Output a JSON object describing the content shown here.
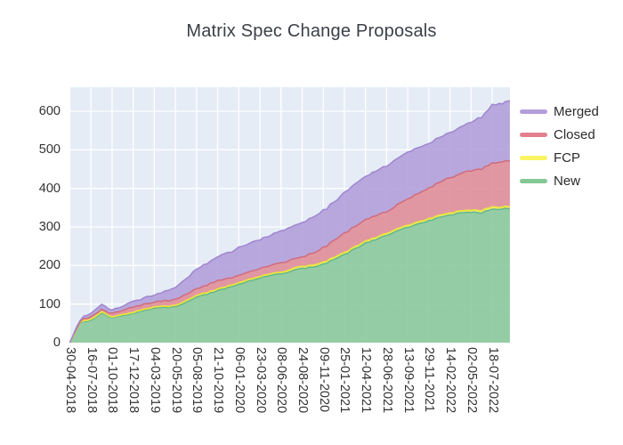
{
  "title": "Matrix Spec Change Proposals",
  "legend": {
    "items": [
      {
        "label": "Merged",
        "color": "#b49ddb"
      },
      {
        "label": "Closed",
        "color": "#e2808e"
      },
      {
        "label": "FCP",
        "color": "#faf463"
      },
      {
        "label": "New",
        "color": "#85c794"
      }
    ]
  },
  "y_axis": {
    "ticks": [
      "0",
      "100",
      "200",
      "300",
      "400",
      "500",
      "600"
    ]
  },
  "x_axis": {
    "ticks": [
      "30-04-2018",
      "16-07-2018",
      "01-10-2018",
      "17-12-2018",
      "04-03-2019",
      "20-05-2019",
      "05-08-2019",
      "21-10-2019",
      "06-01-2020",
      "23-03-2020",
      "08-06-2020",
      "24-08-2020",
      "09-11-2020",
      "25-01-2021",
      "12-04-2021",
      "28-06-2021",
      "13-09-2021",
      "29-11-2021",
      "14-02-2022",
      "02-05-2022",
      "18-07-2022"
    ]
  },
  "chart_data": {
    "type": "area",
    "stacked": true,
    "title": "Matrix Spec Change Proposals",
    "xlabel": "",
    "ylabel": "",
    "ylim": [
      0,
      660
    ],
    "grid": true,
    "legend_position": "right-outside",
    "plot_background": "#e5ecf6",
    "grid_color": "#ffffff",
    "categories": [
      "30-04-2018",
      "16-07-2018",
      "01-10-2018",
      "17-12-2018",
      "04-03-2019",
      "20-05-2019",
      "05-08-2019",
      "21-10-2019",
      "06-01-2020",
      "23-03-2020",
      "08-06-2020",
      "24-08-2020",
      "09-11-2020",
      "25-01-2021",
      "12-04-2021",
      "28-06-2021",
      "13-09-2021",
      "29-11-2021",
      "14-02-2022",
      "02-05-2022",
      "18-07-2022"
    ],
    "stack_order": [
      "New",
      "FCP",
      "Closed",
      "Merged"
    ],
    "series": [
      {
        "name": "New",
        "fill": "#8bc99c",
        "line": "#5fb585",
        "values": [
          0,
          57,
          64,
          76,
          89,
          93,
          118,
          134,
          152,
          168,
          179,
          192,
          203,
          228,
          258,
          278,
          300,
          316,
          331,
          339,
          346
        ]
      },
      {
        "name": "FCP",
        "fill": "#f5f07b",
        "line": "#e9e33f",
        "values": [
          0,
          3,
          2,
          3,
          3,
          3,
          4,
          4,
          4,
          4,
          4,
          5,
          5,
          5,
          5,
          5,
          5,
          5,
          5,
          5,
          6
        ]
      },
      {
        "name": "Closed",
        "fill": "#df8e99",
        "line": "#d06c7c",
        "values": [
          0,
          6,
          9,
          14,
          12,
          16,
          18,
          21,
          19,
          21,
          24,
          25,
          38,
          50,
          56,
          56,
          68,
          80,
          92,
          103,
          114
        ]
      },
      {
        "name": "Merged",
        "fill": "#b3a0da",
        "line": "#9f86cf",
        "values": [
          0,
          9,
          10,
          15,
          18,
          31,
          50,
          62,
          72,
          75,
          82,
          90,
          96,
          105,
          112,
          120,
          122,
          115,
          118,
          125,
          150
        ]
      }
    ],
    "samples": {
      "note": "half-tick-resolution readings used to draw the wiggly weekly curve; positions are in tick units",
      "positions": [
        0,
        0.5,
        1,
        1.5,
        2,
        2.5,
        3,
        3.5,
        4,
        4.5,
        5,
        5.5,
        6,
        6.5,
        7,
        7.5,
        8,
        8.5,
        9,
        9.5,
        10,
        10.5,
        11,
        11.5,
        12,
        12.5,
        13,
        13.5,
        14,
        14.5,
        15,
        15.5,
        16,
        16.5,
        17,
        17.5,
        18,
        18.5,
        19,
        19.5,
        20,
        20.5,
        20.84
      ],
      "new": [
        0,
        52,
        57,
        76,
        64,
        70,
        76,
        83,
        89,
        91,
        93,
        105,
        118,
        126,
        134,
        143,
        152,
        160,
        168,
        174,
        179,
        186,
        192,
        197,
        203,
        215,
        228,
        243,
        258,
        268,
        278,
        289,
        300,
        308,
        316,
        324,
        331,
        336,
        339,
        337,
        346,
        347,
        348
      ],
      "fcp": [
        0,
        2,
        3,
        3,
        2,
        3,
        3,
        3,
        3,
        3,
        3,
        4,
        4,
        4,
        4,
        4,
        4,
        4,
        4,
        4,
        4,
        5,
        5,
        5,
        5,
        5,
        5,
        5,
        5,
        5,
        5,
        5,
        5,
        5,
        5,
        5,
        5,
        5,
        5,
        6,
        6,
        5,
        5
      ],
      "closed": [
        0,
        3,
        6,
        7,
        9,
        10,
        14,
        13,
        12,
        14,
        16,
        17,
        18,
        19,
        21,
        20,
        19,
        20,
        21,
        22,
        24,
        24,
        25,
        30,
        38,
        44,
        50,
        53,
        56,
        56,
        56,
        62,
        68,
        74,
        80,
        86,
        92,
        97,
        103,
        108,
        114,
        117,
        118
      ],
      "merged": [
        0,
        5,
        9,
        14,
        10,
        11,
        15,
        17,
        18,
        25,
        31,
        40,
        50,
        56,
        62,
        67,
        72,
        74,
        75,
        79,
        82,
        86,
        90,
        93,
        96,
        100,
        105,
        109,
        112,
        116,
        120,
        121,
        122,
        119,
        115,
        116,
        118,
        121,
        125,
        135,
        150,
        152,
        157
      ]
    }
  }
}
